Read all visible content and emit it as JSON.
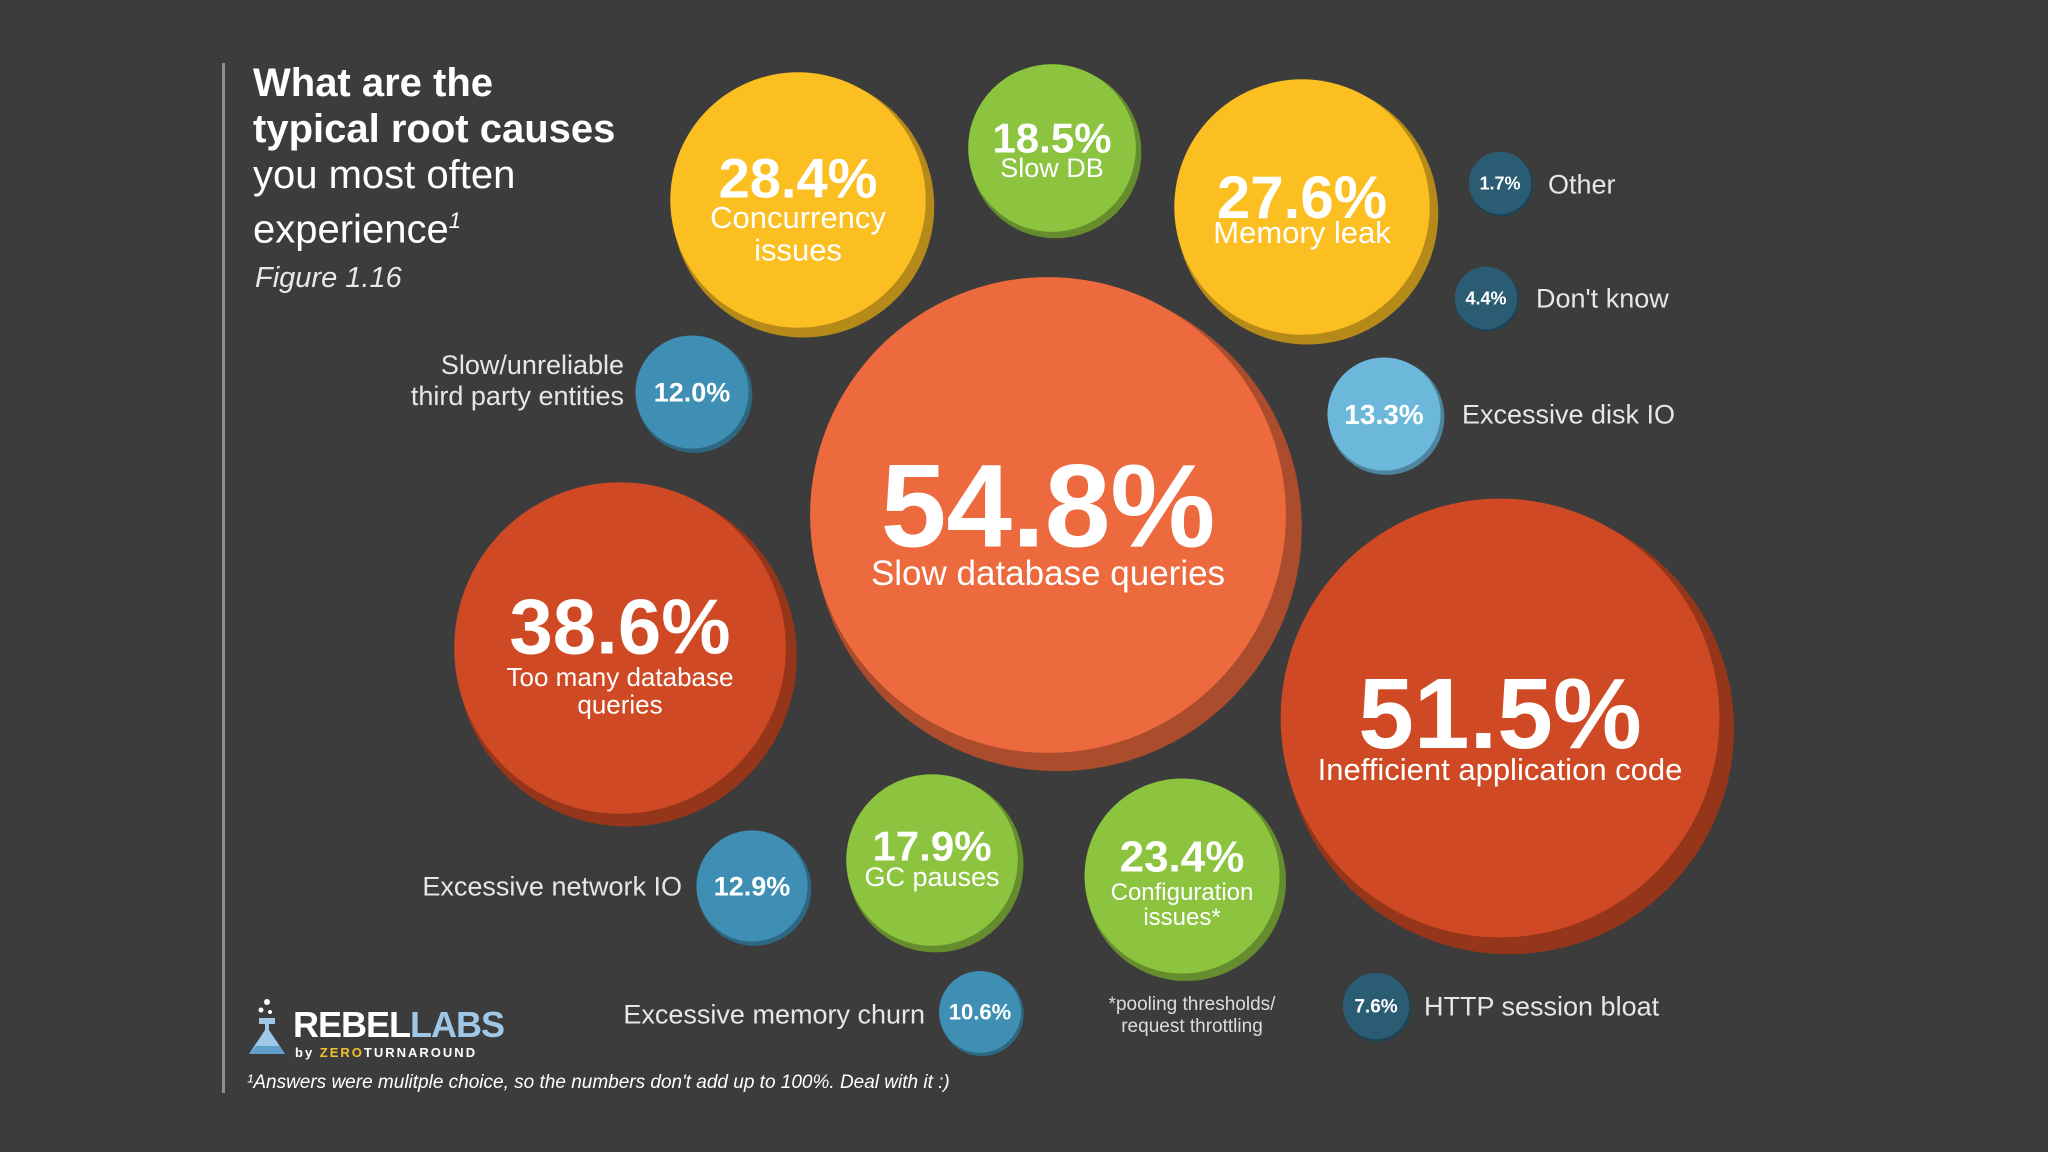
{
  "title": {
    "line1": "What are the",
    "line2": "typical root causes",
    "line3": "you most often",
    "line4": "experience",
    "footnote_marker": "1"
  },
  "figure_label": "Figure 1.16",
  "logo": {
    "rebel": "REBEL",
    "labs": "LABS",
    "by": "by ",
    "zero": "ZERO",
    "turnaround": "TURNAROUND"
  },
  "footnote": "¹Answers were mulitple choice, so the numbers don't add up to 100%. Deal with it :)",
  "colors": {
    "background": "#3c3c3c",
    "red": "#cf4a24",
    "orange": "#ed6a3e",
    "yellow": "#fbbf22",
    "green": "#8cc43f",
    "mid_blue": "#3f8fb4",
    "light_blue": "#6cb8da",
    "dark_teal": "#2a5d73"
  },
  "chart_data": {
    "type": "bubble",
    "title": "What are the typical root causes you most often experience",
    "unit": "%",
    "items": [
      {
        "id": "slow-database-queries",
        "label": "Slow database queries",
        "value": 54.8,
        "display": "54.8%",
        "color": "#ed6a3e"
      },
      {
        "id": "inefficient-application-code",
        "label": "Inefficient application code",
        "value": 51.5,
        "display": "51.5%",
        "color": "#cf4a24"
      },
      {
        "id": "too-many-database-queries",
        "label": "Too many database queries",
        "value": 38.6,
        "display": "38.6%",
        "color": "#cf4a24"
      },
      {
        "id": "concurrency-issues",
        "label": "Concurrency issues",
        "value": 28.4,
        "display": "28.4%",
        "color": "#fbbf22"
      },
      {
        "id": "memory-leak",
        "label": "Memory leak",
        "value": 27.6,
        "display": "27.6%",
        "color": "#fbbf22"
      },
      {
        "id": "configuration-issues",
        "label": "Configuration issues*",
        "value": 23.4,
        "display": "23.4%",
        "color": "#8cc43f"
      },
      {
        "id": "slow-db",
        "label": "Slow DB",
        "value": 18.5,
        "display": "18.5%",
        "color": "#8cc43f"
      },
      {
        "id": "gc-pauses",
        "label": "GC pauses",
        "value": 17.9,
        "display": "17.9%",
        "color": "#8cc43f"
      },
      {
        "id": "excessive-disk-io",
        "label": "Excessive disk IO",
        "value": 13.3,
        "display": "13.3%",
        "color": "#6cb8da"
      },
      {
        "id": "excessive-network-io",
        "label": "Excessive network IO",
        "value": 12.9,
        "display": "12.9%",
        "color": "#3f8fb4"
      },
      {
        "id": "slow-unreliable-third-party",
        "label": "Slow/unreliable third party entities",
        "value": 12.0,
        "display": "12.0%",
        "color": "#3f8fb4"
      },
      {
        "id": "excessive-memory-churn",
        "label": "Excessive memory churn",
        "value": 10.6,
        "display": "10.6%",
        "color": "#3f8fb4"
      },
      {
        "id": "http-session-bloat",
        "label": "HTTP session bloat",
        "value": 7.6,
        "display": "7.6%",
        "color": "#2a5d73"
      },
      {
        "id": "dont-know",
        "label": "Don't know",
        "value": 4.4,
        "display": "4.4%",
        "color": "#2a5d73"
      },
      {
        "id": "other",
        "label": "Other",
        "value": 1.7,
        "display": "1.7%",
        "color": "#2a5d73"
      }
    ],
    "annotation": "*pooling thresholds/ request throttling"
  }
}
